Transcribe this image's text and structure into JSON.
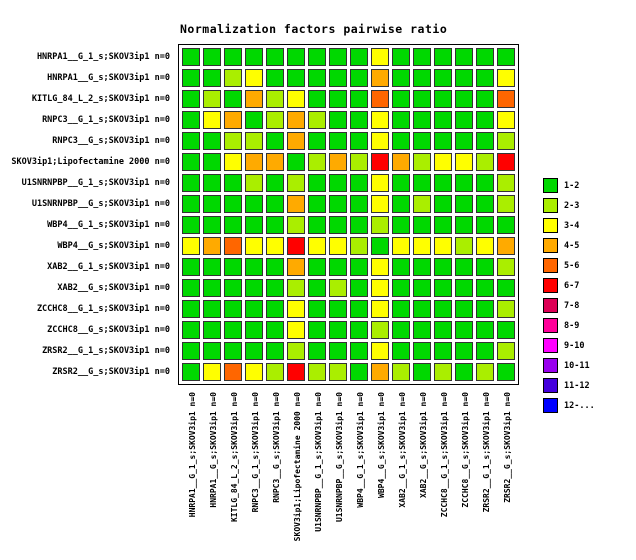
{
  "chart_data": {
    "type": "heatmap",
    "title": "Normalization factors pairwise ratio",
    "rows": [
      "HNRPA1__G_1_s;SKOV3ip1 n=0",
      "HNRPA1__G_s;SKOV3ip1 n=0",
      "KITLG_84_L_2_s;SKOV3ip1 n=0",
      "RNPC3__G_1_s;SKOV3ip1 n=0",
      "RNPC3__G_s;SKOV3ip1 n=0",
      "SKOV3ip1;Lipofectamine 2000 n=0",
      "U1SNRNPBP__G_1_s;SKOV3ip1 n=0",
      "U1SNRNPBP__G_s;SKOV3ip1 n=0",
      "WBP4__G_1_s;SKOV3ip1 n=0",
      "WBP4__G_s;SKOV3ip1 n=0",
      "XAB2__G_1_s;SKOV3ip1 n=0",
      "XAB2__G_s;SKOV3ip1 n=0",
      "ZCCHC8__G_1_s;SKOV3ip1 n=0",
      "ZCCHC8__G_s;SKOV3ip1 n=0",
      "ZRSR2__G_1_s;SKOV3ip1 n=0",
      "ZRSR2__G_s;SKOV3ip1 n=0"
    ],
    "columns": [
      "HNRPA1__G_1_s;SKOV3ip1 n=0",
      "HNRPA1__G_s;SKOV3ip1 n=0",
      "KITLG_84_L_2_s;SKOV3ip1 n=0",
      "RNPC3__G_1_s;SKOV3ip1 n=0",
      "RNPC3__G_s;SKOV3ip1 n=0",
      "SKOV3ip1;Lipofectamine 2000 n=0",
      "U1SNRNPBP__G_1_s;SKOV3ip1 n=0",
      "U1SNRNPBP__G_s;SKOV3ip1 n=0",
      "WBP4__G_1_s;SKOV3ip1 n=0",
      "WBP4__G_s;SKOV3ip1 n=0",
      "XAB2__G_1_s;SKOV3ip1 n=0",
      "XAB2__G_s;SKOV3ip1 n=0",
      "ZCCHC8__G_1_s;SKOV3ip1 n=0",
      "ZCCHC8__G_s;SKOV3ip1 n=0",
      "ZRSR2__G_1_s;SKOV3ip1 n=0",
      "ZRSR2__G_s;SKOV3ip1 n=0"
    ],
    "values_note": "each value is an index into legend.entries (ratio bin)",
    "values": [
      [
        0,
        0,
        0,
        0,
        0,
        0,
        0,
        0,
        0,
        2,
        0,
        0,
        0,
        0,
        0,
        0
      ],
      [
        0,
        0,
        1,
        2,
        0,
        0,
        0,
        0,
        0,
        3,
        0,
        0,
        0,
        0,
        0,
        2
      ],
      [
        0,
        1,
        0,
        3,
        1,
        2,
        0,
        0,
        0,
        4,
        0,
        0,
        0,
        0,
        0,
        4
      ],
      [
        0,
        2,
        3,
        0,
        1,
        3,
        1,
        0,
        0,
        2,
        0,
        0,
        0,
        0,
        0,
        2
      ],
      [
        0,
        0,
        1,
        1,
        0,
        3,
        0,
        0,
        0,
        2,
        0,
        0,
        0,
        0,
        0,
        1
      ],
      [
        0,
        0,
        2,
        3,
        3,
        0,
        1,
        3,
        1,
        5,
        3,
        1,
        2,
        2,
        1,
        5
      ],
      [
        0,
        0,
        0,
        1,
        0,
        1,
        0,
        0,
        0,
        2,
        0,
        0,
        0,
        0,
        0,
        1
      ],
      [
        0,
        0,
        0,
        0,
        0,
        3,
        0,
        0,
        0,
        2,
        0,
        1,
        0,
        0,
        0,
        1
      ],
      [
        0,
        0,
        0,
        0,
        0,
        1,
        0,
        0,
        0,
        1,
        0,
        0,
        0,
        0,
        0,
        0
      ],
      [
        2,
        3,
        4,
        2,
        2,
        5,
        2,
        2,
        1,
        0,
        2,
        2,
        2,
        1,
        2,
        3
      ],
      [
        0,
        0,
        0,
        0,
        0,
        3,
        0,
        0,
        0,
        2,
        0,
        0,
        0,
        0,
        0,
        1
      ],
      [
        0,
        0,
        0,
        0,
        0,
        1,
        0,
        1,
        0,
        2,
        0,
        0,
        0,
        0,
        0,
        0
      ],
      [
        0,
        0,
        0,
        0,
        0,
        2,
        0,
        0,
        0,
        2,
        0,
        0,
        0,
        0,
        0,
        1
      ],
      [
        0,
        0,
        0,
        0,
        0,
        2,
        0,
        0,
        0,
        1,
        0,
        0,
        0,
        0,
        0,
        0
      ],
      [
        0,
        0,
        0,
        0,
        0,
        1,
        0,
        0,
        0,
        2,
        0,
        0,
        0,
        0,
        0,
        1
      ],
      [
        0,
        2,
        4,
        2,
        1,
        5,
        1,
        1,
        0,
        3,
        1,
        0,
        1,
        0,
        1,
        0
      ]
    ],
    "legend": {
      "position": "right",
      "entries": [
        {
          "label": "1-2",
          "color": "#00D800"
        },
        {
          "label": "2-3",
          "color": "#AAEE00"
        },
        {
          "label": "3-4",
          "color": "#FFFF00"
        },
        {
          "label": "4-5",
          "color": "#FFAA00"
        },
        {
          "label": "5-6",
          "color": "#FF6600"
        },
        {
          "label": "6-7",
          "color": "#FF0000"
        },
        {
          "label": "7-8",
          "color": "#DD0055"
        },
        {
          "label": "8-9",
          "color": "#FF0099"
        },
        {
          "label": "9-10",
          "color": "#FF00FF"
        },
        {
          "label": "10-11",
          "color": "#9900EE"
        },
        {
          "label": "11-12",
          "color": "#4400DD"
        },
        {
          "label": "12-...",
          "color": "#0000FF"
        }
      ]
    }
  }
}
